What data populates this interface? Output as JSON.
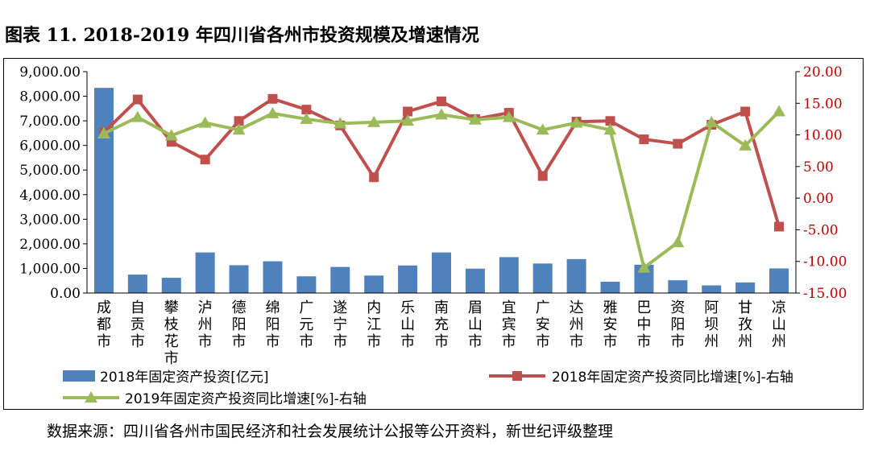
{
  "figure_title": "图表 11. 2018-2019 年四川省各州市投资规模及增速情况",
  "source_note": "数据来源：四川省各州市国民经济和社会发展统计公报等公开资料，新世纪评级整理",
  "colors": {
    "bar": "#4F81BD",
    "line_2018": "#C0504D",
    "line_2019": "#9BBB59",
    "axis_right": "#C00000"
  },
  "chart_data": {
    "type": "bar",
    "title": "",
    "categories": [
      "成都市",
      "自贡市",
      "攀枝花市",
      "泸州市",
      "德阳市",
      "绵阳市",
      "广元市",
      "遂宁市",
      "内江市",
      "乐山市",
      "南充市",
      "眉山市",
      "宜宾市",
      "广安市",
      "达州市",
      "雅安市",
      "巴中市",
      "资阳市",
      "阿坝州",
      "甘孜州",
      "凉山州"
    ],
    "y_left": {
      "min": 0,
      "max": 9000,
      "step": 1000,
      "tick_labels": [
        "0.00",
        "1,000.00",
        "2,000.00",
        "3,000.00",
        "4,000.00",
        "5,000.00",
        "6,000.00",
        "7,000.00",
        "8,000.00",
        "9,000.00"
      ]
    },
    "y_right": {
      "min": -15,
      "max": 20,
      "step": 5,
      "tick_labels": [
        "-15.00",
        "-10.00",
        "-5.00",
        "0.00",
        "5.00",
        "10.00",
        "15.00",
        "20.00"
      ]
    },
    "series": [
      {
        "name": "2018年固定资产投资[亿元]",
        "kind": "bar",
        "axis": "left",
        "values": [
          8340,
          750,
          620,
          1650,
          1130,
          1290,
          680,
          1060,
          710,
          1120,
          1650,
          990,
          1460,
          1200,
          1380,
          460,
          1150,
          520,
          310,
          430,
          1000
        ]
      },
      {
        "name": "2018年固定资产投资同比增速[%]-右轴",
        "kind": "line",
        "axis": "right",
        "values": [
          10.4,
          15.6,
          8.9,
          6.1,
          12.2,
          15.7,
          14.0,
          11.5,
          3.3,
          13.7,
          15.3,
          12.5,
          13.5,
          3.5,
          12.1,
          12.2,
          9.3,
          8.6,
          11.6,
          13.7,
          -4.5
        ]
      },
      {
        "name": "2019年固定资产投资同比增速[%]-右轴",
        "kind": "line",
        "axis": "right",
        "values": [
          10.2,
          12.8,
          9.9,
          11.9,
          10.8,
          13.4,
          12.5,
          11.8,
          12.0,
          12.2,
          13.2,
          12.4,
          12.8,
          10.8,
          11.9,
          10.8,
          -11.0,
          -7.0,
          12.0,
          8.3,
          13.7
        ]
      }
    ],
    "grid": false,
    "legend_position": "bottom"
  }
}
